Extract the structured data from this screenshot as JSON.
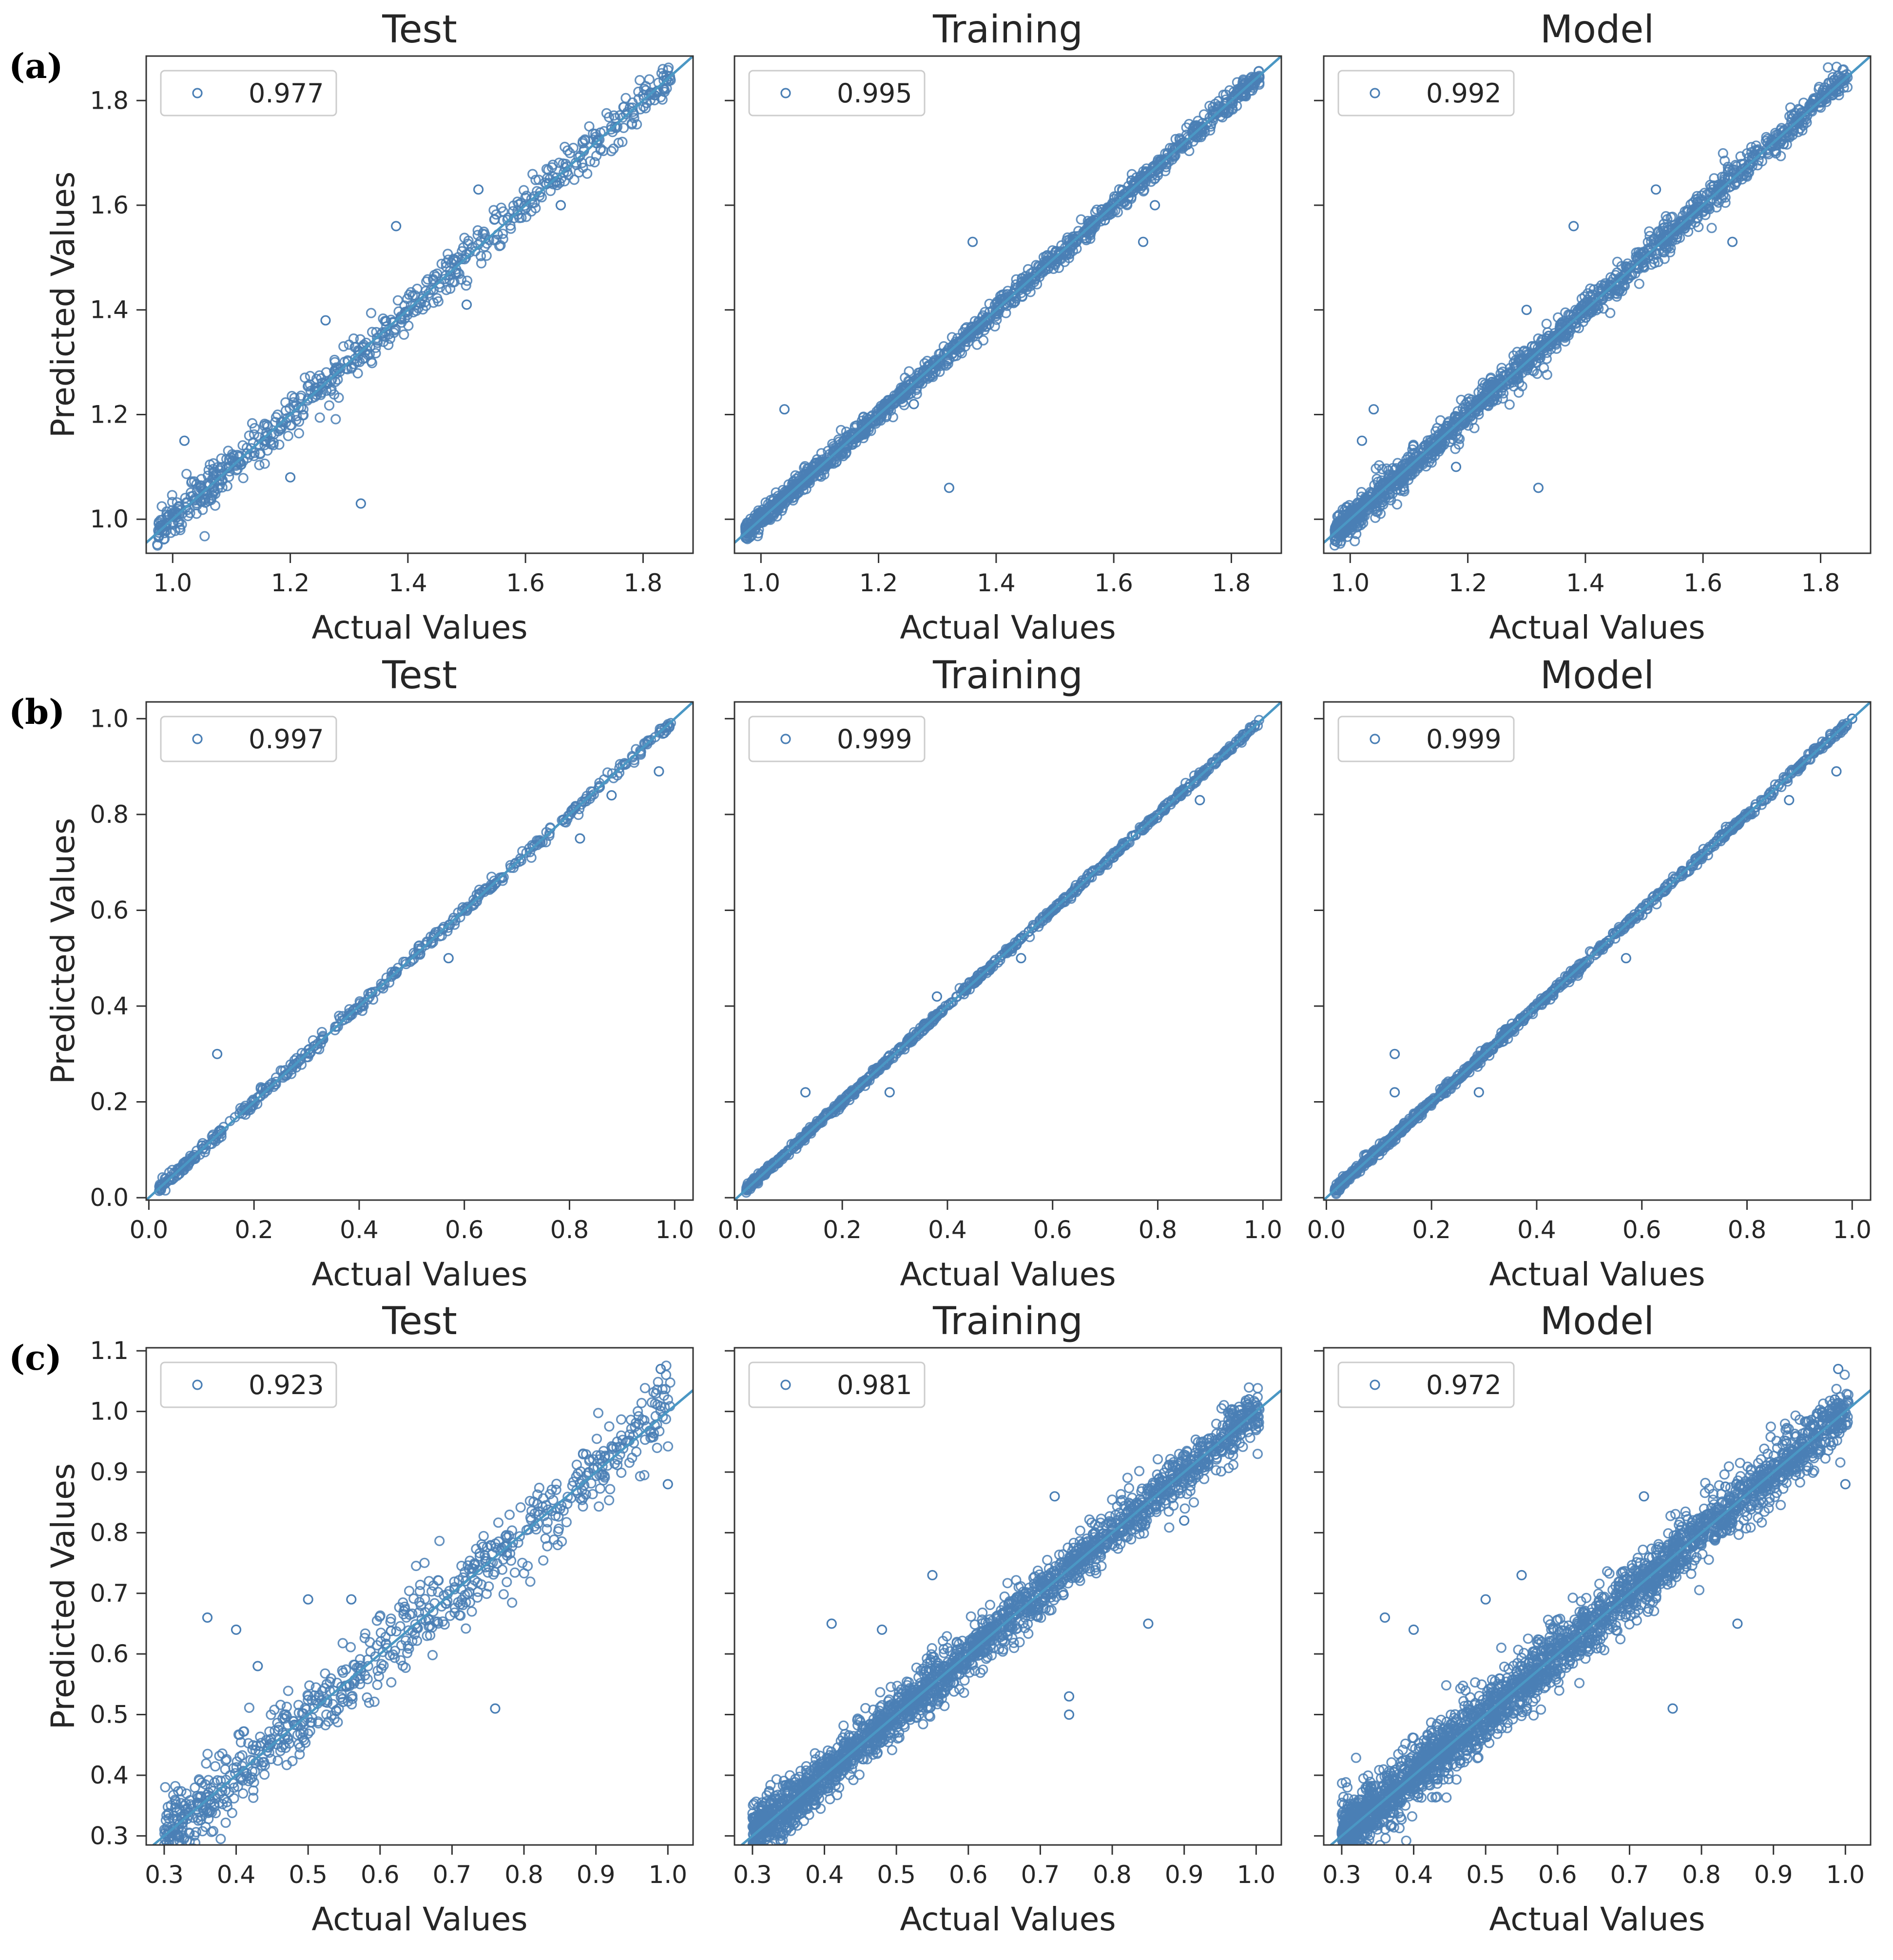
{
  "colors": {
    "marker": "#4a7fb5",
    "line": "#4a97c4",
    "axis": "#333333",
    "background": "#ffffff"
  },
  "chart_data": [
    {
      "row_label": "(a)",
      "type": "scatter",
      "title": "Test",
      "xlabel": "Actual Values",
      "ylabel": "Predicted Values",
      "legend": "0.977",
      "xlim": [
        0.955,
        1.885
      ],
      "ylim": [
        0.935,
        1.885
      ],
      "xticks": [
        "1.0",
        "1.2",
        "1.4",
        "1.6",
        "1.8"
      ],
      "yticks": [
        "1.0",
        "1.2",
        "1.4",
        "1.6",
        "1.8"
      ],
      "xtick_values": [
        1.0,
        1.2,
        1.4,
        1.6,
        1.8
      ],
      "ytick_values": [
        1.0,
        1.2,
        1.4,
        1.6,
        1.8
      ],
      "spread": 0.022,
      "n_points": 650,
      "outliers": [
        [
          1.32,
          1.03
        ],
        [
          1.38,
          1.56
        ],
        [
          1.52,
          1.63
        ],
        [
          1.2,
          1.08
        ],
        [
          1.02,
          1.15
        ],
        [
          1.66,
          1.6
        ],
        [
          1.84,
          1.84
        ],
        [
          1.82,
          1.81
        ],
        [
          1.5,
          1.41
        ],
        [
          1.26,
          1.38
        ]
      ]
    },
    {
      "row_label": "",
      "type": "scatter",
      "title": "Training",
      "xlabel": "Actual Values",
      "ylabel": "",
      "legend": "0.995",
      "xlim": [
        0.955,
        1.885
      ],
      "ylim": [
        0.935,
        1.885
      ],
      "xticks": [
        "1.0",
        "1.2",
        "1.4",
        "1.6",
        "1.8"
      ],
      "yticks": [],
      "xtick_values": [
        1.0,
        1.2,
        1.4,
        1.6,
        1.8
      ],
      "ytick_values": [
        1.0,
        1.2,
        1.4,
        1.6,
        1.8
      ],
      "spread": 0.011,
      "n_points": 1300,
      "outliers": [
        [
          1.32,
          1.06
        ],
        [
          1.04,
          1.21
        ],
        [
          1.36,
          1.53
        ],
        [
          1.65,
          1.53
        ],
        [
          1.67,
          1.6
        ],
        [
          1.84,
          1.84
        ],
        [
          1.82,
          1.81
        ],
        [
          1.8,
          1.8
        ],
        [
          1.26,
          1.22
        ]
      ]
    },
    {
      "row_label": "",
      "type": "scatter",
      "title": "Model",
      "xlabel": "Actual Values",
      "ylabel": "",
      "legend": "0.992",
      "xlim": [
        0.955,
        1.885
      ],
      "ylim": [
        0.935,
        1.885
      ],
      "xticks": [
        "1.0",
        "1.2",
        "1.4",
        "1.6",
        "1.8"
      ],
      "yticks": [],
      "xtick_values": [
        1.0,
        1.2,
        1.4,
        1.6,
        1.8
      ],
      "ytick_values": [
        1.0,
        1.2,
        1.4,
        1.6,
        1.8
      ],
      "spread": 0.016,
      "n_points": 1500,
      "outliers": [
        [
          1.32,
          1.06
        ],
        [
          1.04,
          1.21
        ],
        [
          1.38,
          1.56
        ],
        [
          1.52,
          1.63
        ],
        [
          1.65,
          1.53
        ],
        [
          1.84,
          1.84
        ],
        [
          1.82,
          1.81
        ],
        [
          1.18,
          1.1
        ],
        [
          1.02,
          1.15
        ],
        [
          1.3,
          1.4
        ]
      ]
    },
    {
      "row_label": "(b)",
      "type": "scatter",
      "title": "Test",
      "xlabel": "Actual Values",
      "ylabel": "Predicted Values",
      "legend": "0.997",
      "xlim": [
        -0.005,
        1.035
      ],
      "ylim": [
        -0.005,
        1.035
      ],
      "xticks": [
        "0.0",
        "0.2",
        "0.4",
        "0.6",
        "0.8",
        "1.0"
      ],
      "yticks": [
        "0.0",
        "0.2",
        "0.4",
        "0.6",
        "0.8",
        "1.0"
      ],
      "xtick_values": [
        0.0,
        0.2,
        0.4,
        0.6,
        0.8,
        1.0
      ],
      "ytick_values": [
        0.0,
        0.2,
        0.4,
        0.6,
        0.8,
        1.0
      ],
      "spread": 0.007,
      "n_points": 420,
      "outliers": [
        [
          0.13,
          0.3
        ],
        [
          0.97,
          0.89
        ],
        [
          0.98,
          0.97
        ],
        [
          0.57,
          0.5
        ],
        [
          0.82,
          0.75
        ],
        [
          0.88,
          0.84
        ]
      ]
    },
    {
      "row_label": "",
      "type": "scatter",
      "title": "Training",
      "xlabel": "Actual Values",
      "ylabel": "",
      "legend": "0.999",
      "xlim": [
        -0.005,
        1.035
      ],
      "ylim": [
        -0.005,
        1.035
      ],
      "xticks": [
        "0.0",
        "0.2",
        "0.4",
        "0.6",
        "0.8",
        "1.0"
      ],
      "yticks": [],
      "xtick_values": [
        0.0,
        0.2,
        0.4,
        0.6,
        0.8,
        1.0
      ],
      "ytick_values": [
        0.0,
        0.2,
        0.4,
        0.6,
        0.8,
        1.0
      ],
      "spread": 0.004,
      "n_points": 700,
      "outliers": [
        [
          0.13,
          0.22
        ],
        [
          0.29,
          0.22
        ],
        [
          0.88,
          0.83
        ],
        [
          0.54,
          0.5
        ],
        [
          0.38,
          0.42
        ],
        [
          0.97,
          0.97
        ]
      ]
    },
    {
      "row_label": "",
      "type": "scatter",
      "title": "Model",
      "xlabel": "Actual Values",
      "ylabel": "",
      "legend": "0.999",
      "xlim": [
        -0.005,
        1.035
      ],
      "ylim": [
        -0.005,
        1.035
      ],
      "xticks": [
        "0.0",
        "0.2",
        "0.4",
        "0.6",
        "0.8",
        "1.0"
      ],
      "yticks": [],
      "xtick_values": [
        0.0,
        0.2,
        0.4,
        0.6,
        0.8,
        1.0
      ],
      "ytick_values": [
        0.0,
        0.2,
        0.4,
        0.6,
        0.8,
        1.0
      ],
      "spread": 0.005,
      "n_points": 800,
      "outliers": [
        [
          0.13,
          0.3
        ],
        [
          0.13,
          0.22
        ],
        [
          0.29,
          0.22
        ],
        [
          0.97,
          0.89
        ],
        [
          0.88,
          0.83
        ],
        [
          0.57,
          0.5
        ],
        [
          1.0,
          1.0
        ]
      ]
    },
    {
      "row_label": "(c)",
      "type": "scatter",
      "title": "Test",
      "xlabel": "Actual Values",
      "ylabel": "Predicted Values",
      "legend": "0.923",
      "xlim": [
        0.275,
        1.035
      ],
      "ylim": [
        0.285,
        1.105
      ],
      "xticks": [
        "0.3",
        "0.4",
        "0.5",
        "0.6",
        "0.7",
        "0.8",
        "0.9",
        "1.0"
      ],
      "yticks": [
        "0.3",
        "0.4",
        "0.5",
        "0.6",
        "0.7",
        "0.8",
        "0.9",
        "1.0",
        "1.1"
      ],
      "xtick_values": [
        0.3,
        0.4,
        0.5,
        0.6,
        0.7,
        0.8,
        0.9,
        1.0
      ],
      "ytick_values": [
        0.3,
        0.4,
        0.5,
        0.6,
        0.7,
        0.8,
        0.9,
        1.0,
        1.1
      ],
      "spread": 0.035,
      "n_points": 750,
      "outliers": [
        [
          0.36,
          0.66
        ],
        [
          0.4,
          0.64
        ],
        [
          0.5,
          0.69
        ],
        [
          0.76,
          0.51
        ],
        [
          0.32,
          0.3
        ],
        [
          0.99,
          1.07
        ],
        [
          1.0,
          0.88
        ],
        [
          0.56,
          0.69
        ],
        [
          0.43,
          0.58
        ]
      ]
    },
    {
      "row_label": "",
      "type": "scatter",
      "title": "Training",
      "xlabel": "Actual Values",
      "ylabel": "",
      "legend": "0.981",
      "xlim": [
        0.275,
        1.035
      ],
      "ylim": [
        0.285,
        1.105
      ],
      "xticks": [
        "0.3",
        "0.4",
        "0.5",
        "0.6",
        "0.7",
        "0.8",
        "0.9",
        "1.0"
      ],
      "yticks": [],
      "xtick_values": [
        0.3,
        0.4,
        0.5,
        0.6,
        0.7,
        0.8,
        0.9,
        1.0
      ],
      "ytick_values": [
        0.3,
        0.4,
        0.5,
        0.6,
        0.7,
        0.8,
        0.9,
        1.0,
        1.1
      ],
      "spread": 0.022,
      "n_points": 2200,
      "outliers": [
        [
          0.41,
          0.65
        ],
        [
          0.48,
          0.64
        ],
        [
          0.74,
          0.5
        ],
        [
          0.74,
          0.53
        ],
        [
          0.55,
          0.73
        ],
        [
          0.72,
          0.86
        ],
        [
          0.85,
          0.65
        ],
        [
          0.9,
          0.82
        ],
        [
          0.99,
          1.02
        ]
      ]
    },
    {
      "row_label": "",
      "type": "scatter",
      "title": "Model",
      "xlabel": "Actual Values",
      "ylabel": "",
      "legend": "0.972",
      "xlim": [
        0.275,
        1.035
      ],
      "ylim": [
        0.285,
        1.105
      ],
      "xticks": [
        "0.3",
        "0.4",
        "0.5",
        "0.6",
        "0.7",
        "0.8",
        "0.9",
        "1.0"
      ],
      "yticks": [],
      "xtick_values": [
        0.3,
        0.4,
        0.5,
        0.6,
        0.7,
        0.8,
        0.9,
        1.0
      ],
      "ytick_values": [
        0.3,
        0.4,
        0.5,
        0.6,
        0.7,
        0.8,
        0.9,
        1.0,
        1.1
      ],
      "spread": 0.026,
      "n_points": 2600,
      "outliers": [
        [
          0.36,
          0.66
        ],
        [
          0.4,
          0.64
        ],
        [
          0.5,
          0.69
        ],
        [
          0.76,
          0.51
        ],
        [
          0.99,
          1.07
        ],
        [
          1.0,
          0.88
        ],
        [
          0.72,
          0.86
        ],
        [
          0.85,
          0.65
        ],
        [
          0.32,
          0.3
        ],
        [
          0.55,
          0.73
        ]
      ]
    }
  ]
}
